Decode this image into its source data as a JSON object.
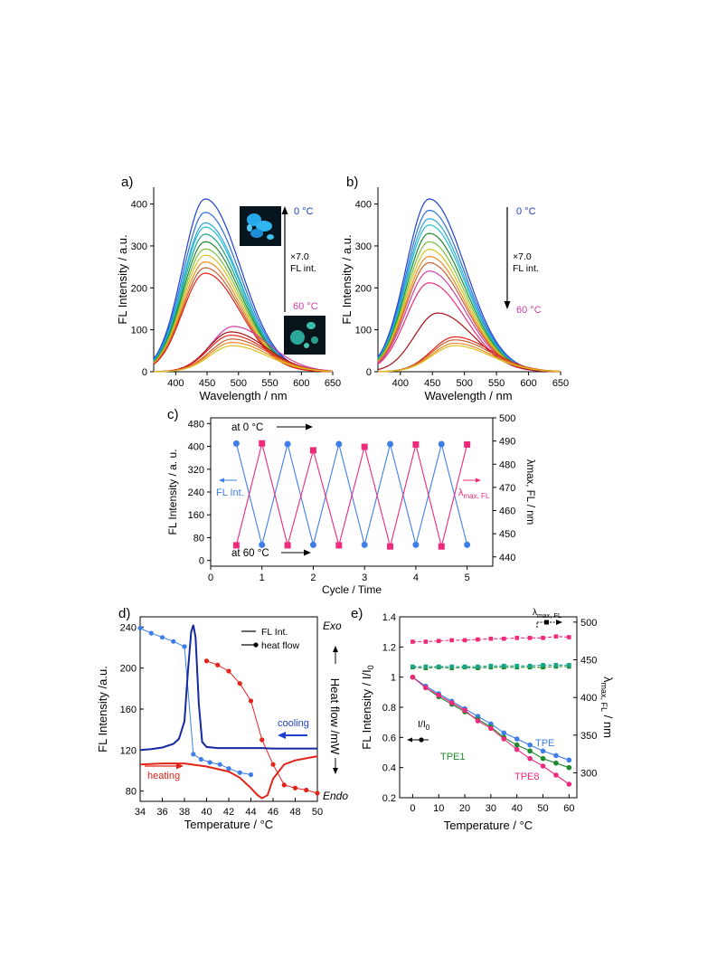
{
  "colors": {
    "blue": "#1f3fd1",
    "blue2": "#2b6ed8",
    "sky": "#2ca3de",
    "cyan": "#23c0cf",
    "teal": "#1aa38b",
    "green": "#1e8a2e",
    "lime": "#7ac143",
    "yellow": "#d9c21c",
    "orange": "#f08a24",
    "rust": "#c8602e",
    "red": "#e2231a",
    "darkred": "#a50f15",
    "magenta": "#d23ea3",
    "pink": "#e8317a",
    "navy": "#1428a0",
    "ptBlue": "#3e7ee8",
    "ptPink": "#ee2a7b",
    "ptGreen": "#1e8a2e"
  },
  "chart_data": [
    {
      "id": "a",
      "panel_label": "a)",
      "type": "line",
      "xlabel": "Wavelength / nm",
      "ylabel": "FL Intensity / a.u.",
      "xlim": [
        365,
        650
      ],
      "ylim": [
        0,
        440
      ],
      "xticks": [
        400,
        450,
        500,
        550,
        600,
        650
      ],
      "yticks": [
        0,
        100,
        200,
        300,
        400
      ],
      "legend": {
        "top_label": "0 °C",
        "bottom_label": "60 °C",
        "arrow_text": [
          "×7.0",
          "FL int."
        ],
        "arrow_direction": "up"
      },
      "series": [
        {
          "peak_nm": 447,
          "peak_int": 412,
          "color": "blue"
        },
        {
          "peak_nm": 447,
          "peak_int": 380,
          "color": "blue2"
        },
        {
          "peak_nm": 447,
          "peak_int": 355,
          "color": "sky"
        },
        {
          "peak_nm": 447,
          "peak_int": 345,
          "color": "cyan"
        },
        {
          "peak_nm": 447,
          "peak_int": 328,
          "color": "teal"
        },
        {
          "peak_nm": 447,
          "peak_int": 310,
          "color": "green"
        },
        {
          "peak_nm": 447,
          "peak_int": 293,
          "color": "lime"
        },
        {
          "peak_nm": 447,
          "peak_int": 278,
          "color": "yellow"
        },
        {
          "peak_nm": 447,
          "peak_int": 262,
          "color": "orange"
        },
        {
          "peak_nm": 447,
          "peak_int": 248,
          "color": "rust"
        },
        {
          "peak_nm": 447,
          "peak_int": 235,
          "color": "red"
        },
        {
          "peak_nm": 492,
          "peak_int": 108,
          "color": "magenta"
        },
        {
          "peak_nm": 488,
          "peak_int": 95,
          "color": "darkred"
        },
        {
          "peak_nm": 488,
          "peak_int": 87,
          "color": "red"
        },
        {
          "peak_nm": 490,
          "peak_int": 78,
          "color": "rust"
        },
        {
          "peak_nm": 490,
          "peak_int": 70,
          "color": "orange"
        },
        {
          "peak_nm": 490,
          "peak_int": 62,
          "color": "yellow"
        }
      ]
    },
    {
      "id": "b",
      "panel_label": "b)",
      "type": "line",
      "xlabel": "Wavelength / nm",
      "ylabel": "FL Intensity / a.u.",
      "xlim": [
        365,
        650
      ],
      "ylim": [
        0,
        440
      ],
      "xticks": [
        400,
        450,
        500,
        550,
        600,
        650
      ],
      "yticks": [
        0,
        100,
        200,
        300,
        400
      ],
      "legend": {
        "top_label": "0 °C",
        "bottom_label": "60 °C",
        "arrow_text": [
          "×7.0",
          "FL int."
        ],
        "arrow_direction": "down"
      },
      "series": [
        {
          "peak_nm": 445,
          "peak_int": 412,
          "color": "blue"
        },
        {
          "peak_nm": 445,
          "peak_int": 385,
          "color": "blue2"
        },
        {
          "peak_nm": 445,
          "peak_int": 365,
          "color": "sky"
        },
        {
          "peak_nm": 445,
          "peak_int": 350,
          "color": "cyan"
        },
        {
          "peak_nm": 445,
          "peak_int": 330,
          "color": "green"
        },
        {
          "peak_nm": 445,
          "peak_int": 310,
          "color": "lime"
        },
        {
          "peak_nm": 445,
          "peak_int": 292,
          "color": "yellow"
        },
        {
          "peak_nm": 445,
          "peak_int": 275,
          "color": "orange"
        },
        {
          "peak_nm": 445,
          "peak_int": 260,
          "color": "rust"
        },
        {
          "peak_nm": 445,
          "peak_int": 240,
          "color": "magenta"
        },
        {
          "peak_nm": 445,
          "peak_int": 212,
          "color": "pink"
        },
        {
          "peak_nm": 458,
          "peak_int": 140,
          "color": "darkred"
        },
        {
          "peak_nm": 485,
          "peak_int": 83,
          "color": "red"
        },
        {
          "peak_nm": 485,
          "peak_int": 76,
          "color": "rust"
        },
        {
          "peak_nm": 485,
          "peak_int": 68,
          "color": "orange"
        },
        {
          "peak_nm": 485,
          "peak_int": 62,
          "color": "yellow"
        }
      ]
    },
    {
      "id": "c",
      "panel_label": "c)",
      "type": "line",
      "xlabel": "Cycle / Time",
      "ylabel": "FL Intensity / a. u.",
      "ylabel_right": "λmax, FL / nm",
      "xlim": [
        0,
        5.5
      ],
      "ylim": [
        -20,
        500
      ],
      "ylim_right": [
        436,
        500
      ],
      "xticks": [
        0,
        1,
        2,
        3,
        4,
        5
      ],
      "yticks": [
        0,
        80,
        160,
        240,
        320,
        400,
        480
      ],
      "yticks_right": [
        440,
        450,
        460,
        470,
        480,
        490,
        500
      ],
      "annotations": {
        "top": "at 0 °C",
        "bottom": "at 60 °C",
        "left_legend": "FL Int.",
        "right_legend": "λmax, FL"
      },
      "series": [
        {
          "name": "FL Int.",
          "color": "ptBlue",
          "marker": "circle",
          "x": [
            0.5,
            1,
            1.5,
            2,
            2.5,
            3,
            3.5,
            4,
            4.5,
            5
          ],
          "y": [
            410,
            55,
            408,
            55,
            408,
            55,
            408,
            55,
            408,
            55
          ]
        },
        {
          "name": "λmax, FL",
          "color": "ptPink",
          "marker": "square",
          "axis": "right",
          "x": [
            0.5,
            1,
            1.5,
            2,
            2.5,
            3,
            3.5,
            4,
            4.5,
            5
          ],
          "y": [
            445,
            489,
            445,
            486,
            445,
            487.5,
            444.5,
            488.5,
            444.5,
            488.5
          ]
        }
      ]
    },
    {
      "id": "d",
      "panel_label": "d)",
      "type": "line",
      "xlabel": "Temperature / °C",
      "ylabel": "FL Intensity /a.u.",
      "ylabel_right": "Heat flow /mW",
      "right_top": "Exo",
      "right_bottom": "Endo",
      "xlim": [
        34,
        50
      ],
      "ylim": [
        70,
        250
      ],
      "xticks": [
        34,
        36,
        38,
        40,
        42,
        44,
        46,
        48,
        50
      ],
      "yticks": [
        80,
        120,
        160,
        200,
        240
      ],
      "legend": [
        "FL Int.",
        "heat flow"
      ],
      "labels": {
        "cooling": "cooling",
        "heating": "heating"
      },
      "series": [
        {
          "name": "FL cooling",
          "color": "ptBlue",
          "marker": "circle",
          "x": [
            34,
            35,
            36,
            37,
            38,
            38.8,
            39.5,
            40.3,
            41.2,
            42,
            43,
            44
          ],
          "y": [
            239,
            234,
            230,
            226,
            221,
            116,
            111,
            108,
            106,
            102,
            98,
            96
          ]
        },
        {
          "name": "FL heating",
          "color": "red",
          "marker": "circle",
          "x": [
            40,
            41,
            42,
            43,
            44,
            45,
            46,
            47,
            48,
            49,
            50
          ],
          "y": [
            207,
            203,
            197,
            185,
            168,
            130,
            106,
            86,
            83,
            81,
            78
          ]
        },
        {
          "name": "DSC cooling",
          "color": "navy",
          "marker": "none",
          "x": [
            34,
            35,
            36,
            37,
            37.5,
            38,
            38.3,
            38.6,
            38.8,
            39,
            39.3,
            39.6,
            40,
            41,
            42,
            43,
            44,
            45,
            46,
            47,
            48,
            49,
            50
          ],
          "y": [
            120,
            121,
            122.5,
            126,
            131,
            148,
            195,
            235,
            242,
            230,
            165,
            128,
            123,
            122,
            122,
            122,
            122,
            122,
            121.5,
            121.5,
            121.5,
            121.5,
            121.5
          ]
        },
        {
          "name": "DSC heating",
          "color": "red",
          "marker": "none",
          "x": [
            34,
            36,
            38,
            40,
            42,
            43,
            44,
            44.6,
            45,
            45.5,
            46,
            47,
            48,
            49,
            50
          ],
          "y": [
            106,
            107,
            107,
            104,
            99,
            93,
            83,
            76,
            73,
            76,
            92,
            106,
            110,
            112,
            114
          ]
        }
      ]
    },
    {
      "id": "e",
      "panel_label": "e)",
      "type": "line",
      "xlabel": "Temperature / °C",
      "ylabel": "FL Intensity / I/I0",
      "ylabel_right": "λmax, FL / nm",
      "xlim": [
        -5,
        63
      ],
      "ylim": [
        0.2,
        1.4
      ],
      "ylim_right": [
        267,
        507
      ],
      "xticks": [
        0,
        10,
        20,
        30,
        40,
        50,
        60
      ],
      "yticks": [
        0.2,
        0.4,
        0.6,
        0.8,
        1,
        1.2,
        1.4
      ],
      "yticks_right": [
        300,
        350,
        400,
        450,
        500
      ],
      "annotations": {
        "ratio_label": "I/I0",
        "lambda_label": "λmax, FL"
      },
      "series": [
        {
          "name": "TPE",
          "color": "ptBlue",
          "marker": "circle",
          "x": [
            0,
            5,
            10,
            15,
            20,
            25,
            30,
            35,
            40,
            45,
            50,
            55,
            60
          ],
          "y": [
            1.0,
            0.94,
            0.89,
            0.84,
            0.79,
            0.74,
            0.69,
            0.63,
            0.59,
            0.55,
            0.51,
            0.48,
            0.45
          ]
        },
        {
          "name": "TPE1",
          "color": "ptGreen",
          "marker": "circle",
          "x": [
            0,
            5,
            10,
            15,
            20,
            25,
            30,
            35,
            40,
            45,
            50,
            55,
            60
          ],
          "y": [
            1.0,
            0.93,
            0.87,
            0.82,
            0.77,
            0.72,
            0.67,
            0.6,
            0.55,
            0.51,
            0.46,
            0.43,
            0.4
          ]
        },
        {
          "name": "TPE8",
          "color": "ptPink",
          "marker": "circle",
          "x": [
            0,
            5,
            10,
            15,
            20,
            25,
            30,
            35,
            40,
            45,
            50,
            55,
            60
          ],
          "y": [
            1.0,
            0.93,
            0.88,
            0.83,
            0.78,
            0.71,
            0.66,
            0.59,
            0.52,
            0.46,
            0.41,
            0.35,
            0.29
          ]
        },
        {
          "name": "λ pink",
          "color": "ptPink",
          "marker": "square",
          "axis": "right",
          "x": [
            0,
            5,
            10,
            15,
            20,
            25,
            30,
            35,
            40,
            45,
            50,
            55,
            60
          ],
          "y": [
            474,
            474,
            475,
            476,
            476,
            477,
            478,
            478,
            479,
            479,
            479,
            481,
            480
          ]
        },
        {
          "name": "λ green",
          "color": "ptGreen",
          "marker": "square",
          "axis": "right",
          "x": [
            0,
            5,
            10,
            15,
            20,
            25,
            30,
            35,
            40,
            45,
            50,
            55,
            60
          ],
          "y": [
            440,
            439,
            440,
            439,
            440,
            439,
            440,
            440,
            440,
            440,
            440,
            441,
            441
          ]
        },
        {
          "name": "λ teal",
          "color": "teal",
          "marker": "square",
          "axis": "right",
          "x": [
            0,
            5,
            10,
            15,
            20,
            25,
            30,
            35,
            40,
            45,
            50,
            55,
            60
          ],
          "y": [
            441,
            441,
            441,
            441,
            441,
            441,
            442,
            442,
            442,
            442,
            443,
            443,
            443
          ]
        }
      ]
    }
  ]
}
